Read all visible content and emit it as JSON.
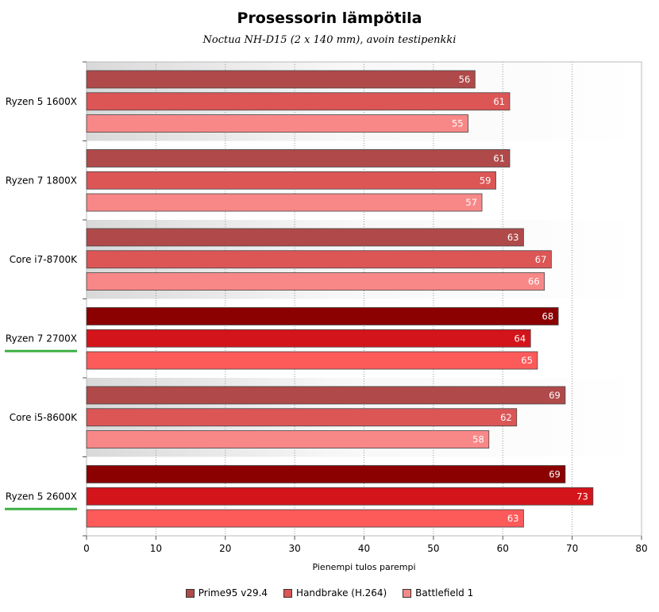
{
  "chart_data": {
    "type": "bar",
    "orientation": "horizontal",
    "title": "Prosessorin lämpötila",
    "subtitle": "Noctua NH-D15 (2 x 140 mm), avoin testipenkki",
    "xlabel": "Pienempi tulos parempi",
    "xlim": [
      0,
      80
    ],
    "xticks": [
      0,
      10,
      20,
      30,
      40,
      50,
      60,
      70,
      80
    ],
    "grid": "vertical dotted",
    "legend_position": "bottom",
    "categories": [
      "Ryzen 5 1600X",
      "Ryzen 7 1800X",
      "Core i7-8700K",
      "Ryzen 7 2700X",
      "Core i5-8600K",
      "Ryzen 5 2600X"
    ],
    "highlighted_categories": [
      "Ryzen 7 2700X",
      "Ryzen 5 2600X"
    ],
    "series": [
      {
        "name": "Prime95 v29.4",
        "values": [
          56,
          61,
          63,
          68,
          69,
          69
        ],
        "color": "#b04a4a",
        "highlight_color": "#8b0000"
      },
      {
        "name": "Handbrake (H.264)",
        "values": [
          61,
          59,
          67,
          64,
          62,
          73
        ],
        "color": "#dc5656",
        "highlight_color": "#d4141b"
      },
      {
        "name": "Battlefield 1",
        "values": [
          55,
          57,
          66,
          65,
          58,
          63
        ],
        "color": "#f88888",
        "highlight_color": "#fd5a5a"
      }
    ],
    "colors": {
      "underline": "#3cb043",
      "band_light": "#ededed"
    }
  }
}
